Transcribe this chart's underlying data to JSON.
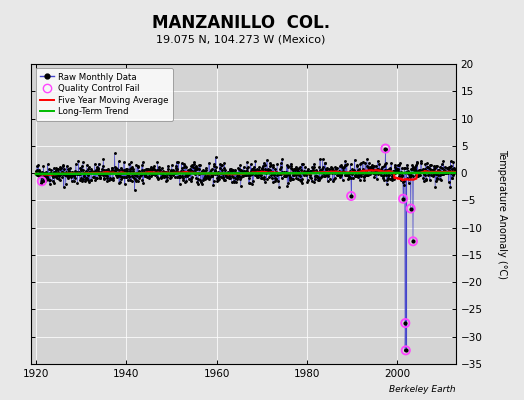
{
  "title": "MANZANILLO  COL.",
  "subtitle": "19.075 N, 104.273 W (Mexico)",
  "ylabel": "Temperature Anomaly (°C)",
  "credit": "Berkeley Earth",
  "xlim": [
    1919,
    2013
  ],
  "ylim": [
    -35,
    20
  ],
  "yticks": [
    -35,
    -30,
    -25,
    -20,
    -15,
    -10,
    -5,
    0,
    5,
    10,
    15,
    20
  ],
  "xticks": [
    1920,
    1940,
    1960,
    1980,
    2000
  ],
  "background_color": "#e8e8e8",
  "plot_bg_color": "#d4d4d4",
  "raw_color": "#4444cc",
  "raw_dot_color": "#000000",
  "qc_color": "#ff44ff",
  "ma_color": "#ff0000",
  "trend_color": "#00bb00",
  "seed": 42,
  "year_start": 1920,
  "year_end": 2012,
  "qc_fails": [
    {
      "year": 1921.3,
      "value": -1.5
    },
    {
      "year": 1989.8,
      "value": -4.2
    },
    {
      "year": 1997.4,
      "value": 4.5
    },
    {
      "year": 2001.3,
      "value": -4.7
    },
    {
      "year": 2003.0,
      "value": -6.5
    },
    {
      "year": 2003.5,
      "value": -12.5
    },
    {
      "year": 2001.8,
      "value": -27.5
    },
    {
      "year": 2001.9,
      "value": -32.5
    }
  ],
  "noise_std": 0.95,
  "title_fontsize": 12,
  "subtitle_fontsize": 8,
  "tick_fontsize": 7.5
}
